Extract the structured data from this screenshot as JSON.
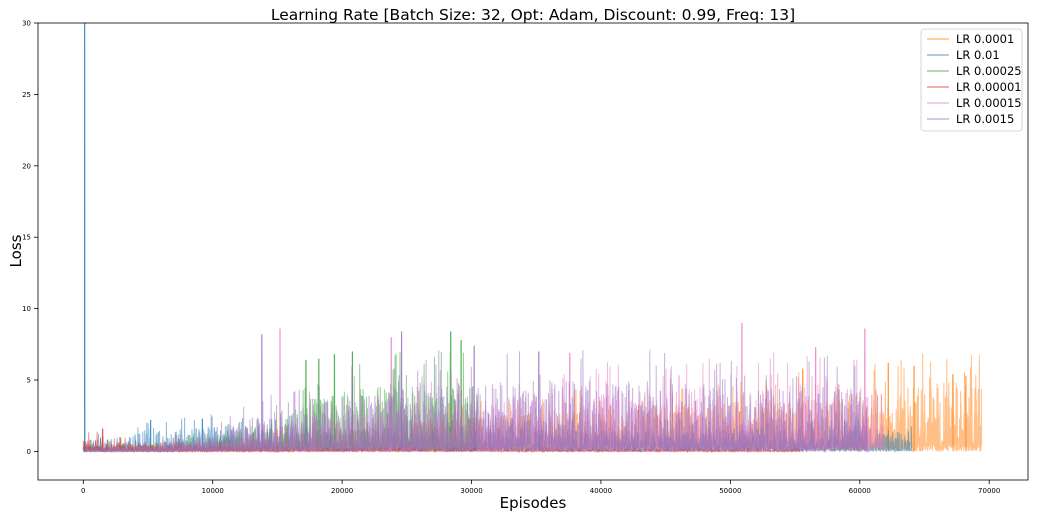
{
  "chart_data": {
    "type": "line",
    "title": "Learning Rate [Batch Size: 32, Opt: Adam, Discount: 0.99, Freq: 13]",
    "xlabel": "Episodes",
    "ylabel": "Loss",
    "xlim": [
      -3500,
      73000
    ],
    "ylim": [
      -2,
      30
    ],
    "xticks": [
      "0",
      "10000",
      "20000",
      "30000",
      "40000",
      "50000",
      "60000",
      "70000"
    ],
    "yticks": [
      "0",
      "5",
      "10",
      "15",
      "20",
      "25",
      "30"
    ],
    "grid": false,
    "legend_position": "top-right",
    "series": [
      {
        "name": "LR 0.0001",
        "color": "#ff7f0e",
        "x_end": 69400,
        "envelope": {
          "x": [
            0,
            5000,
            10000,
            15000,
            20000,
            25000,
            30000,
            35000,
            40000,
            45000,
            50000,
            55000,
            60000,
            62000,
            64000,
            66000,
            68000,
            69400
          ],
          "y": [
            0.4,
            0.6,
            0.8,
            1.2,
            1.6,
            2.0,
            2.4,
            2.8,
            3.2,
            3.4,
            3.6,
            3.8,
            4.0,
            4.3,
            4.6,
            4.9,
            5.0,
            4.5
          ]
        },
        "peaks": [
          {
            "x": 55600,
            "y": 5.8
          },
          {
            "x": 62200,
            "y": 6.2
          },
          {
            "x": 64200,
            "y": 6.0
          },
          {
            "x": 67200,
            "y": 5.4
          },
          {
            "x": 68200,
            "y": 5.3
          }
        ]
      },
      {
        "name": "LR 0.01",
        "color": "#1f77b4",
        "x_end": 64000,
        "envelope": {
          "x": [
            0,
            2000,
            5000,
            8000,
            10000,
            15000,
            20000,
            25000,
            30000,
            35000,
            40000,
            45000,
            50000,
            55000,
            60000,
            64000
          ],
          "y": [
            0.8,
            0.9,
            1.4,
            1.6,
            1.8,
            1.8,
            1.7,
            1.8,
            1.8,
            1.6,
            1.5,
            1.6,
            1.6,
            1.6,
            1.6,
            1.5
          ]
        },
        "peaks": [
          {
            "x": 100,
            "y": 30
          },
          {
            "x": 5200,
            "y": 2.2
          },
          {
            "x": 9200,
            "y": 2.3
          }
        ]
      },
      {
        "name": "LR 0.00025",
        "color": "#2ca02c",
        "x_end": 30400,
        "envelope": {
          "x": [
            0,
            5000,
            10000,
            14000,
            16000,
            20000,
            24000,
            28000,
            30400
          ],
          "y": [
            0.3,
            0.5,
            1.0,
            2.0,
            3.0,
            4.2,
            4.8,
            5.0,
            4.6
          ]
        },
        "peaks": [
          {
            "x": 17200,
            "y": 6.4
          },
          {
            "x": 18200,
            "y": 6.5
          },
          {
            "x": 19400,
            "y": 6.8
          },
          {
            "x": 20800,
            "y": 7.0
          },
          {
            "x": 28400,
            "y": 8.4
          },
          {
            "x": 29200,
            "y": 7.8
          }
        ]
      },
      {
        "name": "LR 0.00001",
        "color": "#d62728",
        "x_end": 55400,
        "envelope": {
          "x": [
            0,
            500,
            1500,
            3000,
            5000,
            10000,
            20000,
            30000,
            40000,
            55400
          ],
          "y": [
            0.8,
            1.1,
            1.0,
            0.8,
            0.5,
            0.4,
            0.3,
            0.3,
            0.2,
            0.2
          ]
        },
        "peaks": [
          {
            "x": 1500,
            "y": 1.6
          }
        ]
      },
      {
        "name": "LR 0.00015",
        "color": "#e377c2",
        "x_end": 61800,
        "envelope": {
          "x": [
            0,
            5000,
            10000,
            15000,
            20000,
            25000,
            30000,
            35000,
            40000,
            45000,
            50000,
            55000,
            60000,
            61800
          ],
          "y": [
            0.3,
            0.4,
            0.8,
            1.5,
            2.5,
            3.2,
            3.6,
            3.9,
            4.2,
            4.5,
            4.7,
            4.8,
            4.9,
            4.6
          ]
        },
        "peaks": [
          {
            "x": 15200,
            "y": 8.6
          },
          {
            "x": 23800,
            "y": 8.0
          },
          {
            "x": 37600,
            "y": 6.9
          },
          {
            "x": 50900,
            "y": 9.0
          },
          {
            "x": 60400,
            "y": 8.6
          },
          {
            "x": 56600,
            "y": 7.3
          }
        ]
      },
      {
        "name": "LR 0.0015",
        "color": "#9467bd",
        "x_end": 60600,
        "envelope": {
          "x": [
            0,
            5000,
            10000,
            12000,
            15000,
            20000,
            25000,
            30000,
            35000,
            40000,
            45000,
            50000,
            55000,
            60600
          ],
          "y": [
            0.2,
            0.5,
            1.2,
            2.0,
            3.2,
            4.0,
            4.6,
            4.9,
            5.0,
            5.0,
            4.8,
            4.7,
            4.6,
            4.4
          ]
        },
        "peaks": [
          {
            "x": 13800,
            "y": 8.2
          },
          {
            "x": 24600,
            "y": 8.4
          },
          {
            "x": 30200,
            "y": 7.4
          },
          {
            "x": 35200,
            "y": 7.0
          }
        ]
      }
    ]
  }
}
